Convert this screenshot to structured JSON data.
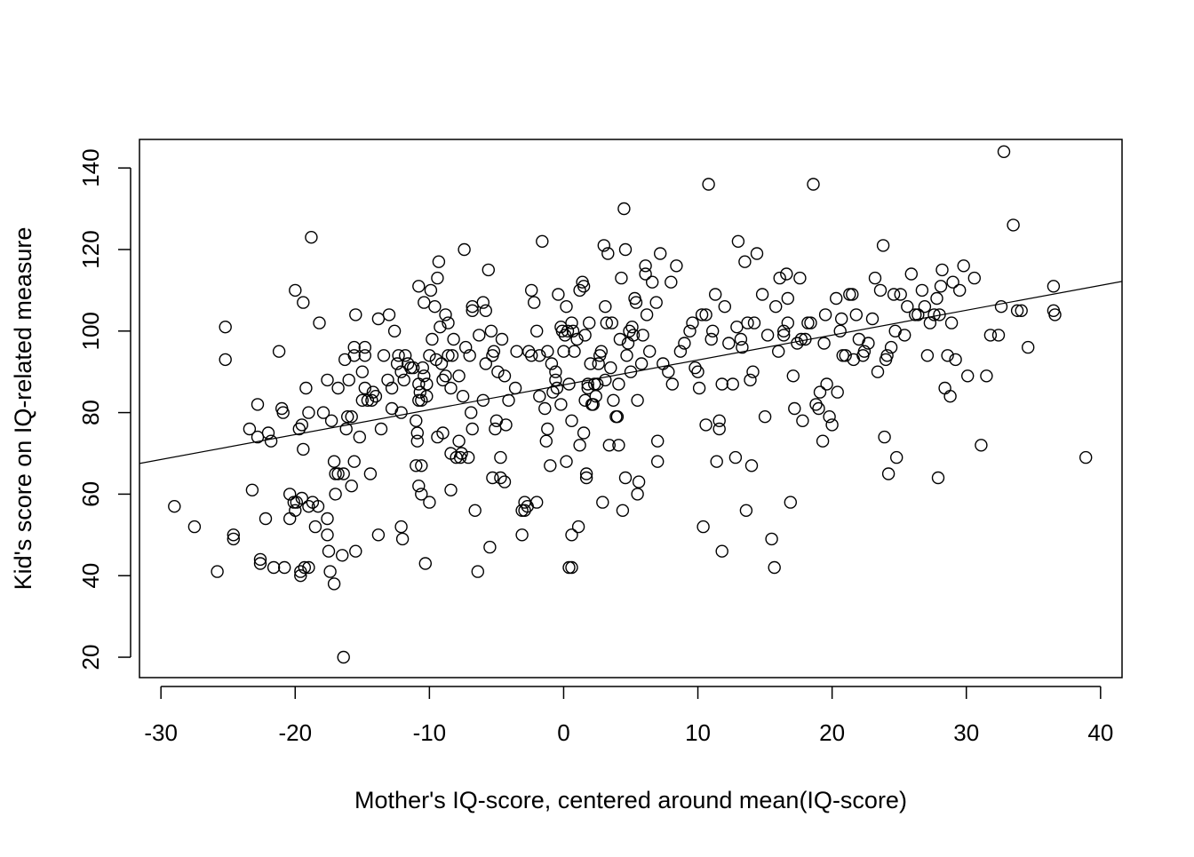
{
  "chart_data": {
    "type": "scatter",
    "title": "",
    "xlabel": "Mother's IQ-score, centered around mean(IQ-score)",
    "ylabel": "Kid's score on IQ-related measure",
    "xlim": [
      -31.6,
      41.6
    ],
    "ylim": [
      15,
      147
    ],
    "x_ticks": [
      -30,
      -20,
      -10,
      0,
      10,
      20,
      30,
      40
    ],
    "y_ticks": [
      20,
      40,
      60,
      80,
      100,
      120,
      140
    ],
    "x_tick_labels": [
      "-30",
      "-20",
      "-10",
      "0",
      "10",
      "20",
      "30",
      "40"
    ],
    "y_tick_labels": [
      "20",
      "40",
      "60",
      "80",
      "100",
      "120",
      "140"
    ],
    "grid": false,
    "legend": "none",
    "marker": "open-circle",
    "colors": {
      "points": "#000000",
      "line": "#000000",
      "background": "#ffffff"
    },
    "regression_line": {
      "intercept": 86.8,
      "slope": 0.61
    },
    "points": [
      [
        -29.0,
        57
      ],
      [
        -27.5,
        52
      ],
      [
        -25.8,
        41
      ],
      [
        -25.2,
        101
      ],
      [
        -25.2,
        93
      ],
      [
        -24.6,
        50
      ],
      [
        -24.6,
        49
      ],
      [
        -23.4,
        76
      ],
      [
        -23.2,
        61
      ],
      [
        -22.8,
        82
      ],
      [
        -22.8,
        74
      ],
      [
        -22.6,
        44
      ],
      [
        -22.6,
        43
      ],
      [
        -22.2,
        54
      ],
      [
        -22.0,
        75
      ],
      [
        -21.8,
        73
      ],
      [
        -21.6,
        42
      ],
      [
        -21.2,
        95
      ],
      [
        -21.0,
        81
      ],
      [
        -20.9,
        80
      ],
      [
        -20.8,
        42
      ],
      [
        -20.4,
        60
      ],
      [
        -20.4,
        54
      ],
      [
        -20.1,
        58
      ],
      [
        -20.0,
        56
      ],
      [
        -20.0,
        110
      ],
      [
        -19.9,
        58
      ],
      [
        -19.7,
        76
      ],
      [
        -19.6,
        41
      ],
      [
        -19.6,
        40
      ],
      [
        -19.5,
        77
      ],
      [
        -19.5,
        59
      ],
      [
        -19.4,
        107
      ],
      [
        -19.4,
        71
      ],
      [
        -19.3,
        42
      ],
      [
        -19.2,
        86
      ],
      [
        -19.0,
        42
      ],
      [
        -19.0,
        57
      ],
      [
        -19.0,
        80
      ],
      [
        -18.8,
        123
      ],
      [
        -18.7,
        58
      ],
      [
        -18.5,
        52
      ],
      [
        -18.3,
        57
      ],
      [
        -18.2,
        102
      ],
      [
        -17.9,
        80
      ],
      [
        -17.6,
        88
      ],
      [
        -17.6,
        54
      ],
      [
        -17.6,
        50
      ],
      [
        -17.5,
        46
      ],
      [
        -17.4,
        41
      ],
      [
        -17.3,
        78
      ],
      [
        -17.1,
        38
      ],
      [
        -17.1,
        68
      ],
      [
        -17.0,
        65
      ],
      [
        -17.0,
        60
      ],
      [
        -16.8,
        86
      ],
      [
        -16.8,
        65
      ],
      [
        -16.5,
        45
      ],
      [
        -16.4,
        65
      ],
      [
        -16.4,
        20
      ],
      [
        -16.3,
        93
      ],
      [
        -16.2,
        76
      ],
      [
        -16.1,
        79
      ],
      [
        -16.0,
        88
      ],
      [
        -15.8,
        62
      ],
      [
        -15.8,
        79
      ],
      [
        -15.6,
        68
      ],
      [
        -15.6,
        94
      ],
      [
        -15.6,
        96
      ],
      [
        -15.5,
        46
      ],
      [
        -15.5,
        104
      ],
      [
        -15.2,
        74
      ],
      [
        -15.0,
        90
      ],
      [
        -15.0,
        83
      ],
      [
        -14.8,
        96
      ],
      [
        -14.8,
        94
      ],
      [
        -14.8,
        86
      ],
      [
        -14.6,
        83
      ],
      [
        -14.4,
        65
      ],
      [
        -14.3,
        83
      ],
      [
        -14.2,
        85
      ],
      [
        -14.0,
        84
      ],
      [
        -13.8,
        50
      ],
      [
        -13.8,
        103
      ],
      [
        -13.6,
        76
      ],
      [
        -13.4,
        94
      ],
      [
        -13.1,
        88
      ],
      [
        -13.0,
        104
      ],
      [
        -12.8,
        86
      ],
      [
        -12.8,
        81
      ],
      [
        -12.6,
        100
      ],
      [
        -12.4,
        92
      ],
      [
        -12.3,
        94
      ],
      [
        -12.1,
        90
      ],
      [
        -12.1,
        80
      ],
      [
        -12.1,
        52
      ],
      [
        -12.0,
        49
      ],
      [
        -11.9,
        88
      ],
      [
        -11.8,
        94
      ],
      [
        -11.6,
        92
      ],
      [
        -11.4,
        91
      ],
      [
        -11.2,
        91
      ],
      [
        -11.0,
        67
      ],
      [
        -11.0,
        78
      ],
      [
        -10.9,
        75
      ],
      [
        -10.9,
        73
      ],
      [
        -10.8,
        87
      ],
      [
        -10.8,
        83
      ],
      [
        -10.8,
        62
      ],
      [
        -10.8,
        111
      ],
      [
        -10.7,
        85
      ],
      [
        -10.6,
        67
      ],
      [
        -10.6,
        60
      ],
      [
        -10.6,
        83
      ],
      [
        -10.5,
        91
      ],
      [
        -10.4,
        107
      ],
      [
        -10.4,
        89
      ],
      [
        -10.3,
        43
      ],
      [
        -10.2,
        84
      ],
      [
        -10.2,
        87
      ],
      [
        -10.0,
        58
      ],
      [
        -10.0,
        94
      ],
      [
        -9.9,
        110
      ],
      [
        -9.8,
        98
      ],
      [
        -9.6,
        106
      ],
      [
        -9.5,
        93
      ],
      [
        -9.4,
        113
      ],
      [
        -9.4,
        74
      ],
      [
        -9.3,
        117
      ],
      [
        -9.2,
        101
      ],
      [
        -9.1,
        92
      ],
      [
        -9.0,
        88
      ],
      [
        -9.0,
        75
      ],
      [
        -8.8,
        89
      ],
      [
        -8.8,
        104
      ],
      [
        -8.6,
        102
      ],
      [
        -8.6,
        94
      ],
      [
        -8.4,
        70
      ],
      [
        -8.4,
        61
      ],
      [
        -8.4,
        86
      ],
      [
        -8.3,
        94
      ],
      [
        -8.2,
        98
      ],
      [
        -8.0,
        69
      ],
      [
        -7.8,
        73
      ],
      [
        -7.8,
        89
      ],
      [
        -7.7,
        69
      ],
      [
        -7.6,
        70
      ],
      [
        -7.5,
        84
      ],
      [
        -7.4,
        120
      ],
      [
        -7.3,
        96
      ],
      [
        -7.1,
        69
      ],
      [
        -7.0,
        94
      ],
      [
        -6.9,
        80
      ],
      [
        -6.8,
        76
      ],
      [
        -6.8,
        105
      ],
      [
        -6.8,
        106
      ],
      [
        -6.6,
        56
      ],
      [
        -6.4,
        41
      ],
      [
        -6.3,
        99
      ],
      [
        -6.0,
        107
      ],
      [
        -6.0,
        83
      ],
      [
        -5.8,
        105
      ],
      [
        -5.8,
        92
      ],
      [
        -5.6,
        115
      ],
      [
        -5.5,
        47
      ],
      [
        -5.4,
        100
      ],
      [
        -5.3,
        64
      ],
      [
        -5.3,
        94
      ],
      [
        -5.2,
        95
      ],
      [
        -5.1,
        76
      ],
      [
        -5.0,
        78
      ],
      [
        -4.9,
        90
      ],
      [
        -4.7,
        69
      ],
      [
        -4.7,
        64
      ],
      [
        -4.6,
        98
      ],
      [
        -4.4,
        63
      ],
      [
        -4.4,
        89
      ],
      [
        -4.3,
        77
      ],
      [
        -4.1,
        83
      ],
      [
        -3.6,
        86
      ],
      [
        -3.5,
        95
      ],
      [
        -3.1,
        50
      ],
      [
        -3.1,
        56
      ],
      [
        -2.9,
        58
      ],
      [
        -2.9,
        56
      ],
      [
        -2.7,
        57
      ],
      [
        -2.6,
        95
      ],
      [
        -2.4,
        110
      ],
      [
        -2.4,
        94
      ],
      [
        -2.2,
        107
      ],
      [
        -2.0,
        58
      ],
      [
        -2.0,
        100
      ],
      [
        -1.8,
        84
      ],
      [
        -1.8,
        94
      ],
      [
        -1.6,
        122
      ],
      [
        -1.4,
        81
      ],
      [
        -1.3,
        73
      ],
      [
        -1.2,
        76
      ],
      [
        -1.2,
        95
      ],
      [
        -1.0,
        67
      ],
      [
        -0.9,
        92
      ],
      [
        -0.8,
        85
      ],
      [
        -0.6,
        88
      ],
      [
        -0.6,
        90
      ],
      [
        -0.5,
        86
      ],
      [
        -0.4,
        109
      ],
      [
        -0.2,
        82
      ],
      [
        -0.2,
        101
      ],
      [
        -0.1,
        100
      ],
      [
        -0.0,
        95
      ],
      [
        0.1,
        99
      ],
      [
        0.2,
        68
      ],
      [
        0.2,
        106
      ],
      [
        0.3,
        100
      ],
      [
        0.4,
        42
      ],
      [
        0.4,
        87
      ],
      [
        0.6,
        102
      ],
      [
        0.6,
        78
      ],
      [
        0.6,
        42
      ],
      [
        0.6,
        50
      ],
      [
        0.7,
        100
      ],
      [
        0.8,
        95
      ],
      [
        1.0,
        98
      ],
      [
        1.1,
        52
      ],
      [
        1.2,
        110
      ],
      [
        1.2,
        72
      ],
      [
        1.4,
        112
      ],
      [
        1.5,
        111
      ],
      [
        1.5,
        75
      ],
      [
        1.6,
        83
      ],
      [
        1.6,
        99
      ],
      [
        1.7,
        65
      ],
      [
        1.7,
        64
      ],
      [
        1.8,
        87
      ],
      [
        1.8,
        86
      ],
      [
        1.9,
        102
      ],
      [
        2.0,
        92
      ],
      [
        2.1,
        82
      ],
      [
        2.2,
        82
      ],
      [
        2.3,
        87
      ],
      [
        2.4,
        84
      ],
      [
        2.5,
        87
      ],
      [
        2.6,
        92
      ],
      [
        2.7,
        94
      ],
      [
        2.8,
        95
      ],
      [
        2.9,
        58
      ],
      [
        3.0,
        121
      ],
      [
        3.1,
        106
      ],
      [
        3.1,
        88
      ],
      [
        3.2,
        102
      ],
      [
        3.3,
        119
      ],
      [
        3.4,
        72
      ],
      [
        3.5,
        91
      ],
      [
        3.6,
        102
      ],
      [
        3.7,
        83
      ],
      [
        3.9,
        79
      ],
      [
        4.0,
        79
      ],
      [
        4.1,
        87
      ],
      [
        4.1,
        72
      ],
      [
        4.2,
        98
      ],
      [
        4.3,
        113
      ],
      [
        4.4,
        56
      ],
      [
        4.5,
        130
      ],
      [
        4.6,
        64
      ],
      [
        4.6,
        120
      ],
      [
        4.7,
        94
      ],
      [
        4.8,
        97
      ],
      [
        4.9,
        100
      ],
      [
        5.0,
        90
      ],
      [
        5.1,
        101
      ],
      [
        5.2,
        99
      ],
      [
        5.3,
        108
      ],
      [
        5.4,
        107
      ],
      [
        5.5,
        83
      ],
      [
        5.5,
        60
      ],
      [
        5.6,
        63
      ],
      [
        5.8,
        92
      ],
      [
        5.9,
        99
      ],
      [
        6.1,
        114
      ],
      [
        6.1,
        116
      ],
      [
        6.2,
        104
      ],
      [
        6.4,
        95
      ],
      [
        6.6,
        112
      ],
      [
        6.9,
        107
      ],
      [
        7.0,
        73
      ],
      [
        7.0,
        68
      ],
      [
        7.2,
        119
      ],
      [
        7.4,
        92
      ],
      [
        7.8,
        90
      ],
      [
        8.0,
        112
      ],
      [
        8.1,
        87
      ],
      [
        8.4,
        116
      ],
      [
        8.7,
        95
      ],
      [
        9.0,
        97
      ],
      [
        9.4,
        100
      ],
      [
        9.6,
        102
      ],
      [
        9.8,
        91
      ],
      [
        10.0,
        90
      ],
      [
        10.1,
        86
      ],
      [
        10.3,
        104
      ],
      [
        10.4,
        52
      ],
      [
        10.6,
        77
      ],
      [
        10.6,
        104
      ],
      [
        10.8,
        136
      ],
      [
        11.0,
        98
      ],
      [
        11.1,
        100
      ],
      [
        11.3,
        109
      ],
      [
        11.4,
        68
      ],
      [
        11.6,
        78
      ],
      [
        11.6,
        76
      ],
      [
        11.8,
        87
      ],
      [
        11.8,
        46
      ],
      [
        12.0,
        106
      ],
      [
        12.3,
        97
      ],
      [
        12.6,
        87
      ],
      [
        12.8,
        69
      ],
      [
        12.9,
        101
      ],
      [
        13.0,
        122
      ],
      [
        13.2,
        98
      ],
      [
        13.3,
        96
      ],
      [
        13.5,
        117
      ],
      [
        13.6,
        56
      ],
      [
        13.7,
        102
      ],
      [
        13.9,
        88
      ],
      [
        14.0,
        67
      ],
      [
        14.1,
        90
      ],
      [
        14.2,
        102
      ],
      [
        14.4,
        119
      ],
      [
        14.8,
        109
      ],
      [
        15.0,
        79
      ],
      [
        15.2,
        99
      ],
      [
        15.5,
        49
      ],
      [
        15.7,
        42
      ],
      [
        15.8,
        106
      ],
      [
        16.0,
        95
      ],
      [
        16.1,
        113
      ],
      [
        16.4,
        100
      ],
      [
        16.4,
        99
      ],
      [
        16.6,
        114
      ],
      [
        16.7,
        102
      ],
      [
        16.7,
        108
      ],
      [
        16.9,
        58
      ],
      [
        17.1,
        89
      ],
      [
        17.2,
        81
      ],
      [
        17.4,
        97
      ],
      [
        17.6,
        113
      ],
      [
        17.7,
        98
      ],
      [
        17.8,
        78
      ],
      [
        18.0,
        98
      ],
      [
        18.2,
        102
      ],
      [
        18.4,
        102
      ],
      [
        18.6,
        136
      ],
      [
        18.8,
        82
      ],
      [
        19.0,
        81
      ],
      [
        19.1,
        85
      ],
      [
        19.3,
        73
      ],
      [
        19.4,
        97
      ],
      [
        19.5,
        104
      ],
      [
        19.6,
        87
      ],
      [
        19.8,
        79
      ],
      [
        20.0,
        77
      ],
      [
        20.3,
        108
      ],
      [
        20.4,
        85
      ],
      [
        20.6,
        100
      ],
      [
        20.7,
        103
      ],
      [
        20.8,
        94
      ],
      [
        21.0,
        94
      ],
      [
        21.3,
        109
      ],
      [
        21.5,
        109
      ],
      [
        21.6,
        93
      ],
      [
        21.8,
        104
      ],
      [
        22.0,
        98
      ],
      [
        22.3,
        94
      ],
      [
        22.4,
        95
      ],
      [
        22.7,
        97
      ],
      [
        23.0,
        103
      ],
      [
        23.2,
        113
      ],
      [
        23.4,
        90
      ],
      [
        23.6,
        110
      ],
      [
        23.8,
        121
      ],
      [
        23.9,
        74
      ],
      [
        24.0,
        93
      ],
      [
        24.1,
        94
      ],
      [
        24.2,
        65
      ],
      [
        24.4,
        96
      ],
      [
        24.6,
        109
      ],
      [
        24.7,
        100
      ],
      [
        24.8,
        69
      ],
      [
        25.1,
        109
      ],
      [
        25.4,
        99
      ],
      [
        25.6,
        106
      ],
      [
        25.9,
        114
      ],
      [
        26.2,
        104
      ],
      [
        26.4,
        104
      ],
      [
        26.7,
        110
      ],
      [
        26.9,
        106
      ],
      [
        27.1,
        94
      ],
      [
        27.3,
        102
      ],
      [
        27.6,
        104
      ],
      [
        27.8,
        108
      ],
      [
        27.9,
        64
      ],
      [
        28.0,
        104
      ],
      [
        28.1,
        111
      ],
      [
        28.2,
        115
      ],
      [
        28.4,
        86
      ],
      [
        28.6,
        94
      ],
      [
        28.8,
        84
      ],
      [
        28.9,
        102
      ],
      [
        29.0,
        112
      ],
      [
        29.2,
        93
      ],
      [
        29.5,
        110
      ],
      [
        29.8,
        116
      ],
      [
        30.1,
        89
      ],
      [
        30.6,
        113
      ],
      [
        31.1,
        72
      ],
      [
        31.5,
        89
      ],
      [
        31.8,
        99
      ],
      [
        32.4,
        99
      ],
      [
        32.6,
        106
      ],
      [
        32.8,
        144
      ],
      [
        33.5,
        126
      ],
      [
        33.8,
        105
      ],
      [
        34.1,
        105
      ],
      [
        34.6,
        96
      ],
      [
        36.5,
        111
      ],
      [
        36.5,
        105
      ],
      [
        36.6,
        104
      ],
      [
        38.9,
        69
      ]
    ]
  }
}
